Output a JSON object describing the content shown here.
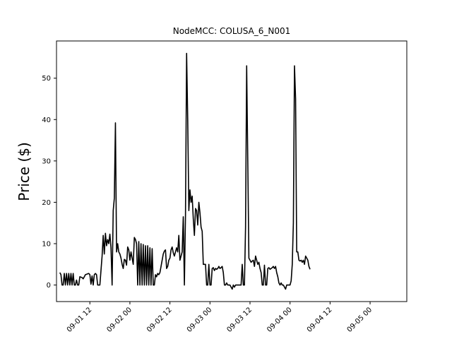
{
  "chart_data": {
    "type": "line",
    "title": "NodeMCC: COLUSA_6_N001",
    "xlabel": "",
    "ylabel": "Price ($)",
    "xlim": [
      "2016-09-01 02:00",
      "2016-09-05 11:00"
    ],
    "ylim": [
      -4,
      59
    ],
    "yticks": [
      0,
      10,
      20,
      30,
      40,
      50
    ],
    "xticks": [
      "2016-09-01 12:00",
      "2016-09-02 00:00",
      "2016-09-02 12:00",
      "2016-09-03 00:00",
      "2016-09-03 12:00",
      "2016-09-04 00:00",
      "2016-09-04 12:00",
      "2016-09-05 00:00"
    ],
    "xtick_labels": [
      "09-01 12",
      "09-02 00",
      "09-02 12",
      "09-03 00",
      "09-03 12",
      "09-04 00",
      "09-04 12",
      "09-05 00"
    ],
    "grid": false,
    "series": [
      {
        "color": "#000000",
        "points": [
          [
            "2016-09-01 03:00",
            3.0
          ],
          [
            "2016-09-01 03:20",
            2.5
          ],
          [
            "2016-09-01 03:40",
            0.0
          ],
          [
            "2016-09-01 04:00",
            0.0
          ],
          [
            "2016-09-01 04:20",
            2.8
          ],
          [
            "2016-09-01 04:40",
            0.0
          ],
          [
            "2016-09-01 05:00",
            2.8
          ],
          [
            "2016-09-01 05:20",
            0.0
          ],
          [
            "2016-09-01 05:40",
            2.8
          ],
          [
            "2016-09-01 06:00",
            0.0
          ],
          [
            "2016-09-01 06:20",
            2.8
          ],
          [
            "2016-09-01 06:40",
            0.0
          ],
          [
            "2016-09-01 07:00",
            2.8
          ],
          [
            "2016-09-01 07:20",
            0.0
          ],
          [
            "2016-09-01 07:40",
            0.0
          ],
          [
            "2016-09-01 08:00",
            1.2
          ],
          [
            "2016-09-01 08:20",
            0.0
          ],
          [
            "2016-09-01 08:40",
            0.0
          ],
          [
            "2016-09-01 09:00",
            2.0
          ],
          [
            "2016-09-01 09:40",
            1.8
          ],
          [
            "2016-09-01 10:00",
            1.5
          ],
          [
            "2016-09-01 10:20",
            2.0
          ],
          [
            "2016-09-01 10:40",
            2.5
          ],
          [
            "2016-09-01 11:00",
            2.6
          ],
          [
            "2016-09-01 11:40",
            2.8
          ],
          [
            "2016-09-01 12:00",
            2.5
          ],
          [
            "2016-09-01 12:20",
            0.2
          ],
          [
            "2016-09-01 12:40",
            2.2
          ],
          [
            "2016-09-01 13:00",
            0.0
          ],
          [
            "2016-09-01 13:20",
            2.5
          ],
          [
            "2016-09-01 13:40",
            2.8
          ],
          [
            "2016-09-01 14:00",
            2.5
          ],
          [
            "2016-09-01 14:20",
            0.0
          ],
          [
            "2016-09-01 15:00",
            0.0
          ],
          [
            "2016-09-01 15:20",
            3.5
          ],
          [
            "2016-09-01 15:40",
            7.0
          ],
          [
            "2016-09-01 16:00",
            12.0
          ],
          [
            "2016-09-01 16:20",
            7.5
          ],
          [
            "2016-09-01 16:40",
            12.5
          ],
          [
            "2016-09-01 17:00",
            9.5
          ],
          [
            "2016-09-01 17:20",
            11.0
          ],
          [
            "2016-09-01 17:40",
            10.0
          ],
          [
            "2016-09-01 18:00",
            12.3
          ],
          [
            "2016-09-01 18:20",
            9.0
          ],
          [
            "2016-09-01 18:40",
            0.0
          ],
          [
            "2016-09-01 19:00",
            18.0
          ],
          [
            "2016-09-01 19:20",
            21.0
          ],
          [
            "2016-09-01 19:40",
            39.2
          ],
          [
            "2016-09-01 20:00",
            8.0
          ],
          [
            "2016-09-01 20:20",
            10.0
          ],
          [
            "2016-09-01 20:40",
            8.0
          ],
          [
            "2016-09-01 21:00",
            7.5
          ],
          [
            "2016-09-01 21:20",
            6.5
          ],
          [
            "2016-09-01 21:40",
            5.0
          ],
          [
            "2016-09-01 22:00",
            4.0
          ],
          [
            "2016-09-01 22:20",
            6.2
          ],
          [
            "2016-09-01 22:40",
            6.0
          ],
          [
            "2016-09-01 23:00",
            4.8
          ],
          [
            "2016-09-01 23:20",
            9.2
          ],
          [
            "2016-09-01 23:40",
            8.5
          ],
          [
            "2016-09-02 00:00",
            6.0
          ],
          [
            "2016-09-02 00:20",
            8.0
          ],
          [
            "2016-09-02 00:40",
            6.5
          ],
          [
            "2016-09-02 01:00",
            5.0
          ],
          [
            "2016-09-02 01:20",
            11.5
          ],
          [
            "2016-09-02 01:40",
            11.0
          ],
          [
            "2016-09-02 02:00",
            10.0
          ],
          [
            "2016-09-02 02:20",
            0.0
          ],
          [
            "2016-09-02 02:40",
            10.5
          ],
          [
            "2016-09-02 03:00",
            0.0
          ],
          [
            "2016-09-02 03:20",
            10.0
          ],
          [
            "2016-09-02 03:40",
            0.0
          ],
          [
            "2016-09-02 04:00",
            9.8
          ],
          [
            "2016-09-02 04:20",
            0.0
          ],
          [
            "2016-09-02 04:40",
            9.5
          ],
          [
            "2016-09-02 05:00",
            0.0
          ],
          [
            "2016-09-02 05:20",
            9.5
          ],
          [
            "2016-09-02 05:40",
            0.0
          ],
          [
            "2016-09-02 06:00",
            9.0
          ],
          [
            "2016-09-02 06:20",
            0.0
          ],
          [
            "2016-09-02 06:40",
            8.8
          ],
          [
            "2016-09-02 07:00",
            0.0
          ],
          [
            "2016-09-02 07:20",
            0.0
          ],
          [
            "2016-09-02 07:40",
            2.5
          ],
          [
            "2016-09-02 08:00",
            2.0
          ],
          [
            "2016-09-02 08:20",
            2.8
          ],
          [
            "2016-09-02 08:40",
            2.5
          ],
          [
            "2016-09-02 09:00",
            3.0
          ],
          [
            "2016-09-02 09:20",
            4.5
          ],
          [
            "2016-09-02 09:40",
            6.0
          ],
          [
            "2016-09-02 10:00",
            7.5
          ],
          [
            "2016-09-02 10:20",
            8.2
          ],
          [
            "2016-09-02 10:40",
            8.5
          ],
          [
            "2016-09-02 11:00",
            4.0
          ],
          [
            "2016-09-02 11:20",
            4.5
          ],
          [
            "2016-09-02 11:40",
            6.0
          ],
          [
            "2016-09-02 12:00",
            6.5
          ],
          [
            "2016-09-02 12:20",
            8.5
          ],
          [
            "2016-09-02 12:40",
            9.2
          ],
          [
            "2016-09-02 13:00",
            7.8
          ],
          [
            "2016-09-02 13:20",
            7.0
          ],
          [
            "2016-09-02 13:40",
            8.0
          ],
          [
            "2016-09-02 14:00",
            9.0
          ],
          [
            "2016-09-02 14:20",
            8.0
          ],
          [
            "2016-09-02 14:40",
            12.0
          ],
          [
            "2016-09-02 15:00",
            6.0
          ],
          [
            "2016-09-02 15:20",
            7.0
          ],
          [
            "2016-09-02 15:40",
            8.0
          ],
          [
            "2016-09-02 16:00",
            16.5
          ],
          [
            "2016-09-02 16:20",
            0.0
          ],
          [
            "2016-09-02 16:40",
            17.0
          ],
          [
            "2016-09-02 17:00",
            56.0
          ],
          [
            "2016-09-02 17:20",
            40.0
          ],
          [
            "2016-09-02 17:40",
            18.0
          ],
          [
            "2016-09-02 18:00",
            23.0
          ],
          [
            "2016-09-02 18:20",
            20.0
          ],
          [
            "2016-09-02 18:40",
            21.5
          ],
          [
            "2016-09-02 19:00",
            16.0
          ],
          [
            "2016-09-02 19:20",
            12.0
          ],
          [
            "2016-09-02 19:40",
            18.5
          ],
          [
            "2016-09-02 20:00",
            18.0
          ],
          [
            "2016-09-02 20:20",
            14.5
          ],
          [
            "2016-09-02 20:40",
            20.0
          ],
          [
            "2016-09-02 21:00",
            17.5
          ],
          [
            "2016-09-02 21:20",
            14.0
          ],
          [
            "2016-09-02 21:40",
            13.0
          ],
          [
            "2016-09-02 22:00",
            5.0
          ],
          [
            "2016-09-02 22:40",
            5.0
          ],
          [
            "2016-09-02 23:00",
            0.0
          ],
          [
            "2016-09-02 23:20",
            0.0
          ],
          [
            "2016-09-02 23:40",
            5.0
          ],
          [
            "2016-09-03 00:00",
            0.0
          ],
          [
            "2016-09-03 00:20",
            0.0
          ],
          [
            "2016-09-03 00:40",
            4.0
          ],
          [
            "2016-09-03 01:00",
            4.2
          ],
          [
            "2016-09-03 01:20",
            3.5
          ],
          [
            "2016-09-03 01:40",
            4.0
          ],
          [
            "2016-09-03 02:00",
            3.8
          ],
          [
            "2016-09-03 02:20",
            4.0
          ],
          [
            "2016-09-03 02:40",
            4.5
          ],
          [
            "2016-09-03 03:00",
            4.0
          ],
          [
            "2016-09-03 03:20",
            4.2
          ],
          [
            "2016-09-03 03:40",
            4.5
          ],
          [
            "2016-09-03 04:00",
            3.0
          ],
          [
            "2016-09-03 04:20",
            0.0
          ],
          [
            "2016-09-03 04:40",
            0.0
          ],
          [
            "2016-09-03 05:00",
            0.5
          ],
          [
            "2016-09-03 05:20",
            0.0
          ],
          [
            "2016-09-03 05:40",
            0.0
          ],
          [
            "2016-09-03 06:00",
            0.0
          ],
          [
            "2016-09-03 06:20",
            -0.5
          ],
          [
            "2016-09-03 06:40",
            -1.0
          ],
          [
            "2016-09-03 07:00",
            0.0
          ],
          [
            "2016-09-03 07:20",
            -0.5
          ],
          [
            "2016-09-03 07:40",
            0.0
          ],
          [
            "2016-09-03 08:00",
            0.0
          ],
          [
            "2016-09-03 08:20",
            0.0
          ],
          [
            "2016-09-03 08:40",
            0.0
          ],
          [
            "2016-09-03 09:00",
            0.0
          ],
          [
            "2016-09-03 09:20",
            0.0
          ],
          [
            "2016-09-03 09:40",
            5.0
          ],
          [
            "2016-09-03 10:00",
            0.0
          ],
          [
            "2016-09-03 10:20",
            0.0
          ],
          [
            "2016-09-03 10:40",
            14.0
          ],
          [
            "2016-09-03 11:00",
            53.0
          ],
          [
            "2016-09-03 11:20",
            30.0
          ],
          [
            "2016-09-03 11:40",
            6.5
          ],
          [
            "2016-09-03 12:00",
            6.0
          ],
          [
            "2016-09-03 12:20",
            5.5
          ],
          [
            "2016-09-03 12:40",
            5.8
          ],
          [
            "2016-09-03 13:00",
            6.0
          ],
          [
            "2016-09-03 13:20",
            4.5
          ],
          [
            "2016-09-03 13:40",
            7.0
          ],
          [
            "2016-09-03 14:00",
            6.0
          ],
          [
            "2016-09-03 14:20",
            5.0
          ],
          [
            "2016-09-03 14:40",
            5.5
          ],
          [
            "2016-09-03 15:00",
            4.0
          ],
          [
            "2016-09-03 15:20",
            3.0
          ],
          [
            "2016-09-03 15:40",
            0.0
          ],
          [
            "2016-09-03 16:00",
            0.0
          ],
          [
            "2016-09-03 16:20",
            4.8
          ],
          [
            "2016-09-03 16:40",
            0.0
          ],
          [
            "2016-09-03 17:00",
            0.0
          ],
          [
            "2016-09-03 17:20",
            4.0
          ],
          [
            "2016-09-03 17:40",
            4.2
          ],
          [
            "2016-09-03 18:00",
            3.8
          ],
          [
            "2016-09-03 18:20",
            4.0
          ],
          [
            "2016-09-03 18:40",
            4.2
          ],
          [
            "2016-09-03 19:00",
            4.5
          ],
          [
            "2016-09-03 19:20",
            4.0
          ],
          [
            "2016-09-03 19:40",
            4.5
          ],
          [
            "2016-09-03 20:00",
            3.0
          ],
          [
            "2016-09-03 20:20",
            2.0
          ],
          [
            "2016-09-03 20:40",
            0.5
          ],
          [
            "2016-09-03 21:00",
            0.0
          ],
          [
            "2016-09-03 21:20",
            0.5
          ],
          [
            "2016-09-03 21:40",
            0.0
          ],
          [
            "2016-09-03 22:00",
            0.0
          ],
          [
            "2016-09-03 22:20",
            -0.5
          ],
          [
            "2016-09-03 22:40",
            -1.0
          ],
          [
            "2016-09-03 23:00",
            0.0
          ],
          [
            "2016-09-03 23:20",
            0.0
          ],
          [
            "2016-09-03 23:40",
            0.0
          ],
          [
            "2016-09-04 00:00",
            0.0
          ],
          [
            "2016-09-04 00:20",
            1.0
          ],
          [
            "2016-09-04 00:40",
            5.0
          ],
          [
            "2016-09-04 01:00",
            15.0
          ],
          [
            "2016-09-04 01:20",
            53.0
          ],
          [
            "2016-09-04 01:40",
            45.0
          ],
          [
            "2016-09-04 02:00",
            8.0
          ],
          [
            "2016-09-04 02:20",
            8.0
          ],
          [
            "2016-09-04 02:40",
            6.0
          ],
          [
            "2016-09-04 03:00",
            5.8
          ],
          [
            "2016-09-04 03:20",
            6.0
          ],
          [
            "2016-09-04 03:40",
            5.5
          ],
          [
            "2016-09-04 04:00",
            6.0
          ],
          [
            "2016-09-04 04:20",
            5.0
          ],
          [
            "2016-09-04 04:40",
            7.0
          ],
          [
            "2016-09-04 05:00",
            6.5
          ],
          [
            "2016-09-04 05:20",
            6.0
          ],
          [
            "2016-09-04 05:40",
            4.5
          ],
          [
            "2016-09-04 06:00",
            3.8
          ]
        ]
      }
    ]
  }
}
